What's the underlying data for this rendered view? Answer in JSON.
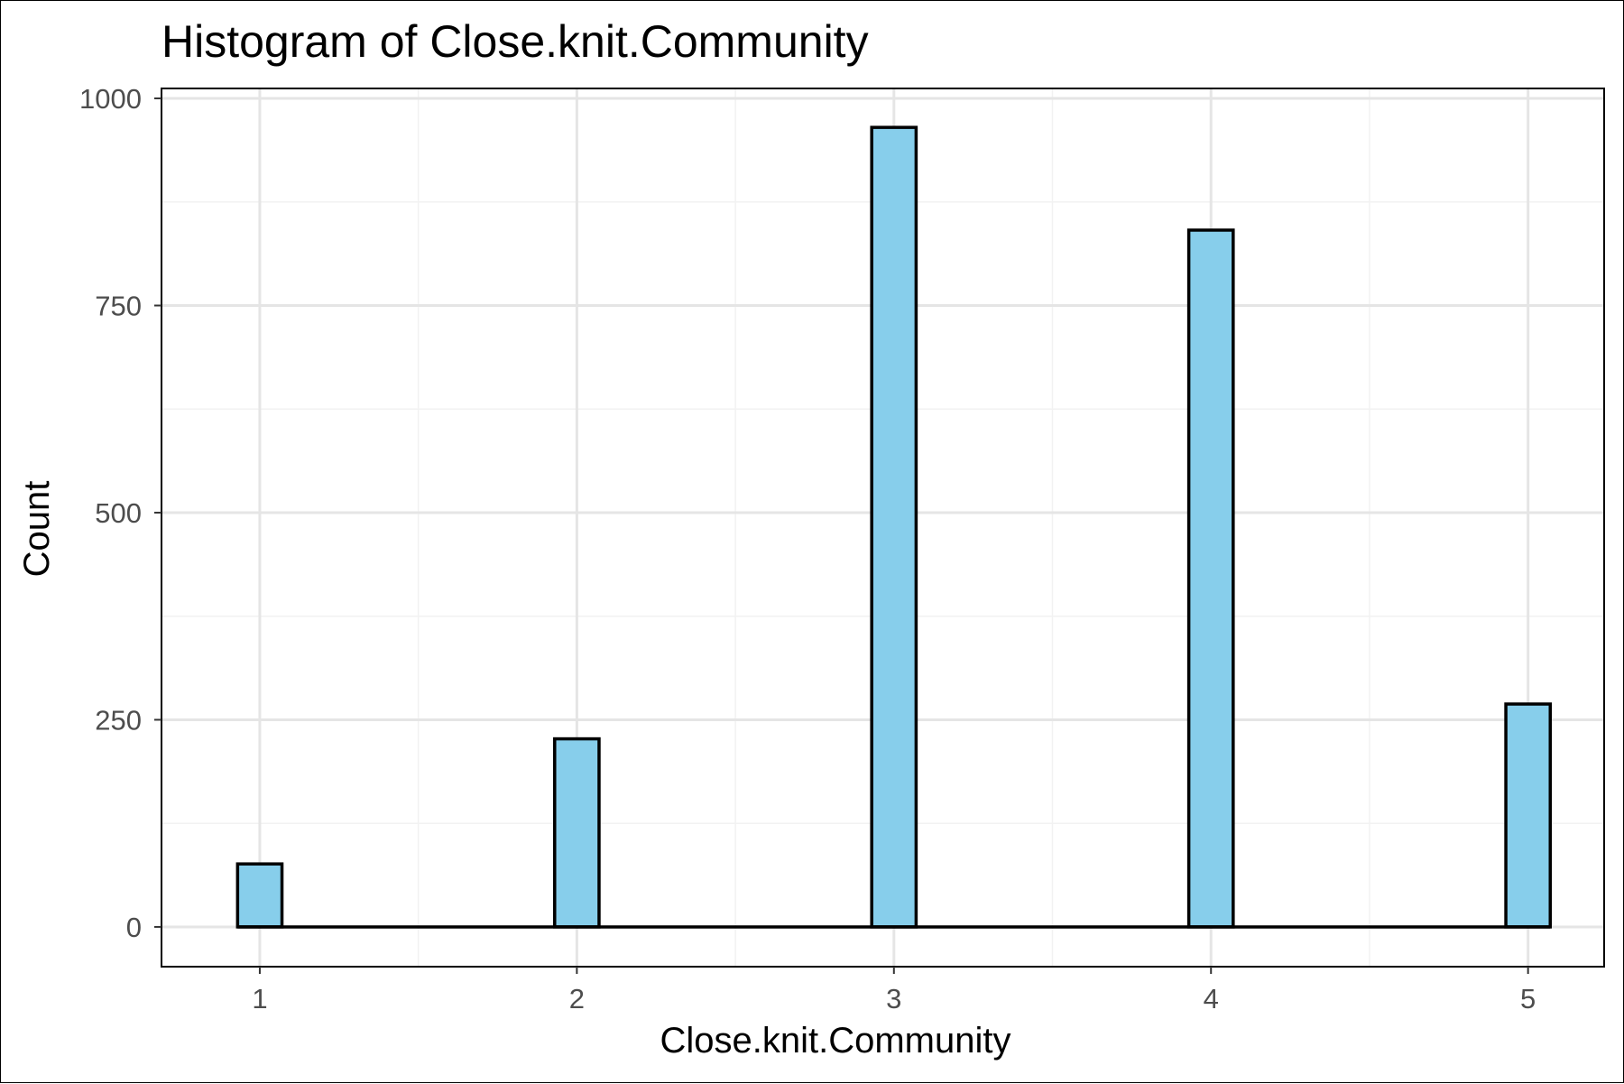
{
  "chart_data": {
    "type": "bar",
    "title": "Histogram of Close.knit.Community",
    "xlabel": "Close.knit.Community",
    "ylabel": "Count",
    "x": [
      1,
      2,
      3,
      4,
      5
    ],
    "values": [
      76,
      227,
      965,
      841,
      269
    ],
    "xlim": [
      0.69,
      5.24
    ],
    "ylim": [
      -48,
      1012
    ],
    "xticks": [
      1,
      2,
      3,
      4,
      5
    ],
    "yticks": [
      0,
      250,
      500,
      750,
      1000
    ],
    "bar_width": 0.14,
    "grid": true,
    "legend": "none",
    "colors": {
      "bar_fill": "#87CEEB",
      "bar_stroke": "#000000",
      "grid_major": "#e5e5e5",
      "grid_minor": "#f2f2f2",
      "panel_border": "#000000",
      "tick_text": "#4d4d4d"
    }
  }
}
